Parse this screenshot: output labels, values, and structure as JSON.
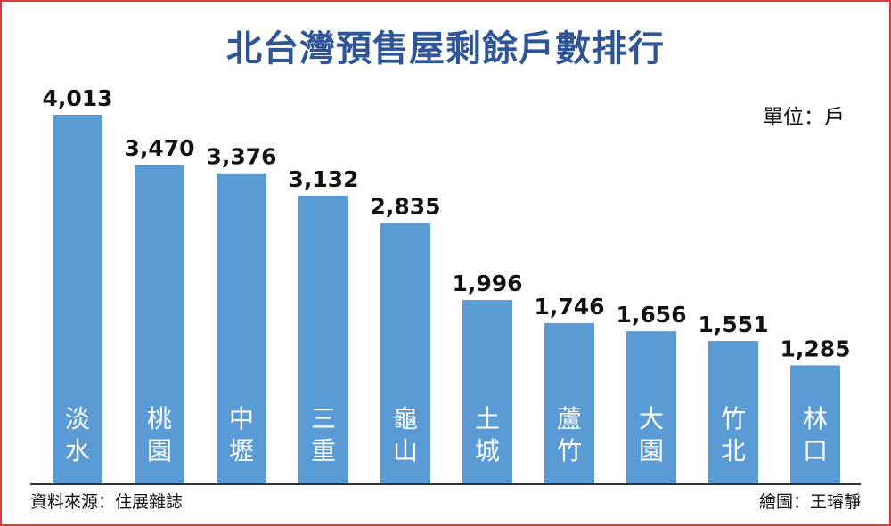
{
  "title": "北台灣預售屋剩餘戶數排行",
  "unit_label": "單位：戶",
  "source": "資料來源：住展雜誌",
  "credit": "繪圖：王璿靜",
  "colors": {
    "bar": "#5b9bd5",
    "title": "#2f5597",
    "frame": "#e53935"
  },
  "chart_data": {
    "type": "bar",
    "categories": [
      "淡水",
      "桃園",
      "中壢",
      "三重",
      "龜山",
      "土城",
      "蘆竹",
      "大園",
      "竹北",
      "林口"
    ],
    "values": [
      4013,
      3470,
      3376,
      3132,
      2835,
      1996,
      1746,
      1656,
      1551,
      1285
    ],
    "value_labels": [
      "4,013",
      "3,470",
      "3,376",
      "3,132",
      "2,835",
      "1,996",
      "1,746",
      "1,656",
      "1,551",
      "1,285"
    ],
    "ylim": [
      0,
      4013
    ]
  }
}
